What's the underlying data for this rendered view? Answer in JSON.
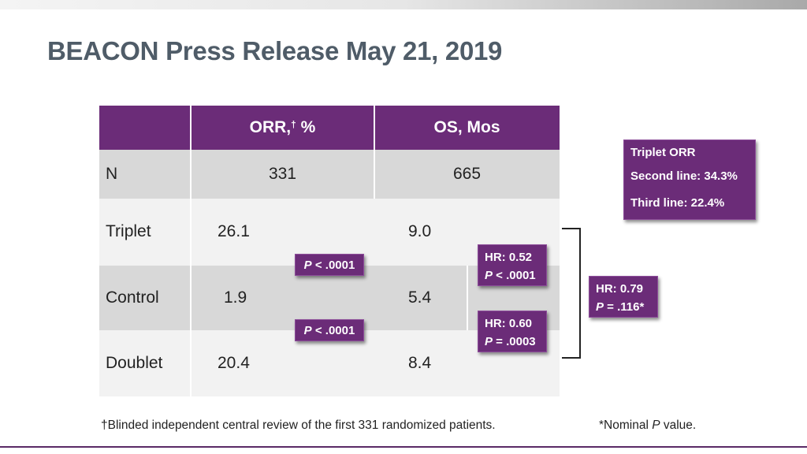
{
  "title": "BEACON Press Release May 21, 2019",
  "table": {
    "headers": {
      "orr_pre": "ORR,",
      "orr_sup": "†",
      "orr_post": " %",
      "os": "OS, Mos"
    },
    "rows": [
      {
        "label": "N",
        "orr": "331",
        "os": "665"
      },
      {
        "label": "Triplet",
        "orr": "26.1",
        "os": "9.0"
      },
      {
        "label": "Control",
        "orr": "1.9",
        "os": "5.4"
      },
      {
        "label": "Doublet",
        "orr": "20.4",
        "os": "8.4"
      }
    ]
  },
  "p_badges": [
    {
      "p": "P",
      "text": " < .0001"
    },
    {
      "p": "P",
      "text": " < .0001"
    }
  ],
  "hr_badges": [
    {
      "hr": "HR: 0.52",
      "p": "P",
      "ptext": " < .0001"
    },
    {
      "hr": "HR: 0.60",
      "p": "P",
      "ptext": " = .0003"
    },
    {
      "hr": "HR: 0.79",
      "p": "P",
      "ptext": " = .116*"
    }
  ],
  "triplet_orr": {
    "title": "Triplet ORR",
    "second": "Second line: 34.3%",
    "third": "Third line: 22.4%"
  },
  "footnotes": {
    "left": "†Blinded independent central review of the first 331 randomized patients.",
    "right_pre": "*Nominal ",
    "right_p": "P",
    "right_post": " value."
  },
  "colors": {
    "purple": "#6b2c78",
    "title": "#4f5c68",
    "row_gray": "#d8d8d8",
    "row_light": "#f2f2f2"
  }
}
